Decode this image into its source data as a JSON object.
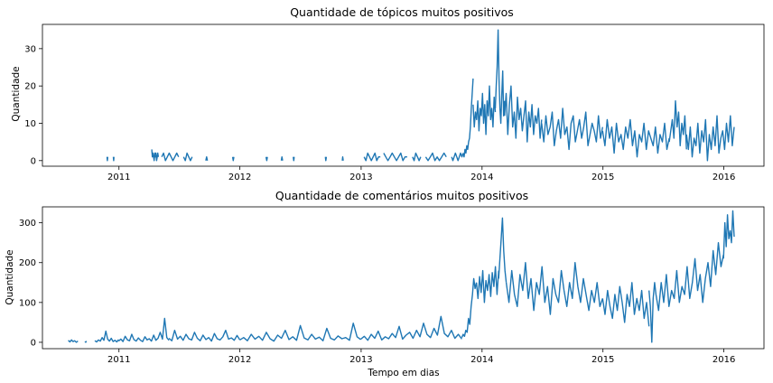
{
  "chart_data": [
    {
      "type": "line",
      "title": "Quantidade de tópicos muitos positivos",
      "xlabel": "",
      "ylabel": "Quantidade",
      "xlim": [
        "2010-05-15",
        "2016-05-01"
      ],
      "ylim": [
        -1.5,
        36.5
      ],
      "xticks": [
        {
          "label": "2011",
          "date": "2011-01-01"
        },
        {
          "label": "2012",
          "date": "2012-01-01"
        },
        {
          "label": "2013",
          "date": "2013-01-01"
        },
        {
          "label": "2014",
          "date": "2014-01-01"
        },
        {
          "label": "2015",
          "date": "2015-01-01"
        },
        {
          "label": "2016",
          "date": "2016-01-01"
        }
      ],
      "yticks": [
        0,
        10,
        20,
        30
      ],
      "grid": false,
      "color": "#1f77b4",
      "series_segments": [
        {
          "start": "2010-11-26",
          "end": "2010-11-28",
          "values": [
            1,
            0,
            1
          ]
        },
        {
          "start": "2010-12-15",
          "end": "2010-12-17",
          "values": [
            1,
            0,
            1
          ]
        },
        {
          "start": "2011-04-10",
          "end": "2011-04-30",
          "values": [
            3,
            1,
            2,
            1,
            0,
            2,
            1,
            2,
            0,
            1,
            2,
            1
          ]
        },
        {
          "start": "2011-05-10",
          "end": "2011-06-30",
          "values": [
            1,
            2,
            0,
            1,
            2,
            1,
            0,
            1,
            2,
            1
          ]
        },
        {
          "start": "2011-07-15",
          "end": "2011-08-10",
          "values": [
            1,
            0,
            2,
            1,
            0,
            1
          ]
        },
        {
          "start": "2011-09-20",
          "end": "2011-09-25",
          "values": [
            0,
            1,
            0
          ]
        },
        {
          "start": "2011-12-10",
          "end": "2011-12-14",
          "values": [
            1,
            0,
            1
          ]
        },
        {
          "start": "2012-03-20",
          "end": "2012-03-24",
          "values": [
            1,
            0,
            1
          ]
        },
        {
          "start": "2012-05-05",
          "end": "2012-05-09",
          "values": [
            0,
            1,
            0
          ]
        },
        {
          "start": "2012-06-10",
          "end": "2012-06-13",
          "values": [
            1,
            0,
            1
          ]
        },
        {
          "start": "2012-09-15",
          "end": "2012-09-18",
          "values": [
            1,
            0,
            1
          ]
        },
        {
          "start": "2012-11-05",
          "end": "2012-11-08",
          "values": [
            0,
            1,
            0
          ]
        },
        {
          "start": "2013-01-10",
          "end": "2013-02-28",
          "values": [
            1,
            0,
            2,
            1,
            0,
            1,
            2,
            0,
            1,
            1
          ]
        },
        {
          "start": "2013-03-10",
          "end": "2013-05-20",
          "values": [
            2,
            1,
            0,
            1,
            2,
            1,
            0,
            1,
            2,
            0,
            1,
            1
          ]
        },
        {
          "start": "2013-06-05",
          "end": "2013-06-30",
          "values": [
            1,
            0,
            2,
            1,
            0,
            1
          ]
        },
        {
          "start": "2013-07-15",
          "end": "2013-09-15",
          "values": [
            1,
            0,
            1,
            2,
            0,
            1,
            0,
            1,
            2,
            1
          ]
        },
        {
          "start": "2013-10-01",
          "end": "2013-11-05",
          "values": [
            1,
            0,
            1,
            2,
            1,
            0,
            1,
            2,
            1,
            2
          ]
        },
        {
          "start": "2013-11-05",
          "end": "2013-12-05",
          "values": [
            2,
            1,
            3,
            2,
            4,
            3,
            5,
            6,
            9,
            14,
            18,
            22
          ]
        },
        {
          "start": "2013-12-05",
          "end": "2014-02-10",
          "values": [
            15,
            9,
            13,
            11,
            16,
            8,
            14,
            12,
            18,
            10,
            15,
            7,
            16,
            12,
            20,
            11,
            14,
            9,
            17,
            13
          ]
        },
        {
          "start": "2014-02-10",
          "end": "2014-03-10",
          "values": [
            14,
            20,
            25,
            35,
            22,
            14,
            10,
            18,
            24,
            12,
            16
          ]
        },
        {
          "start": "2014-03-10",
          "end": "2014-06-30",
          "values": [
            12,
            18,
            7,
            15,
            20,
            9,
            13,
            6,
            17,
            11,
            14,
            8,
            12,
            16,
            5,
            13,
            9,
            15,
            7,
            12,
            10,
            14,
            6,
            11
          ]
        },
        {
          "start": "2014-06-30",
          "end": "2014-12-31",
          "values": [
            10,
            5,
            12,
            7,
            9,
            13,
            4,
            8,
            11,
            6,
            14,
            7,
            9,
            3,
            10,
            12,
            5,
            8,
            11,
            6,
            9,
            13,
            4,
            7,
            10,
            8,
            5,
            12,
            6,
            9
          ]
        },
        {
          "start": "2014-12-31",
          "end": "2015-07-20",
          "values": [
            8,
            4,
            11,
            6,
            9,
            2,
            10,
            5,
            7,
            3,
            9,
            6,
            11,
            4,
            8,
            1,
            7,
            5,
            10,
            3,
            8,
            6,
            4,
            9,
            2,
            7,
            5,
            10,
            3,
            6
          ]
        },
        {
          "start": "2015-07-20",
          "end": "2015-09-10",
          "values": [
            5,
            8,
            11,
            6,
            16,
            9,
            13,
            4,
            10,
            7,
            12,
            3
          ]
        },
        {
          "start": "2015-09-10",
          "end": "2016-02-01",
          "values": [
            7,
            3,
            9,
            1,
            6,
            4,
            10,
            2,
            8,
            5,
            11,
            0,
            7,
            3,
            9,
            4,
            12,
            2,
            6,
            8,
            3,
            10,
            5,
            12,
            4,
            9
          ]
        }
      ]
    },
    {
      "type": "line",
      "title": "Quantidade de comentários muitos positivos",
      "xlabel": "Tempo em dias",
      "ylabel": "Quantidade",
      "xlim": [
        "2010-05-15",
        "2016-05-01"
      ],
      "ylim": [
        -16,
        340
      ],
      "xticks": [
        {
          "label": "2011",
          "date": "2011-01-01"
        },
        {
          "label": "2012",
          "date": "2012-01-01"
        },
        {
          "label": "2013",
          "date": "2013-01-01"
        },
        {
          "label": "2014",
          "date": "2014-01-01"
        },
        {
          "label": "2015",
          "date": "2015-01-01"
        },
        {
          "label": "2016",
          "date": "2016-01-01"
        }
      ],
      "yticks": [
        0,
        100,
        200,
        300
      ],
      "grid": false,
      "color": "#1f77b4",
      "series_segments": [
        {
          "start": "2010-08-01",
          "end": "2010-08-30",
          "values": [
            5,
            1,
            6,
            2,
            4,
            0,
            3
          ]
        },
        {
          "start": "2010-09-20",
          "end": "2010-09-25",
          "values": [
            2,
            0,
            3
          ]
        },
        {
          "start": "2010-10-20",
          "end": "2010-12-31",
          "values": [
            4,
            1,
            6,
            3,
            12,
            5,
            28,
            8,
            3,
            10,
            2,
            5,
            1,
            7
          ]
        },
        {
          "start": "2010-12-31",
          "end": "2011-06-01",
          "values": [
            3,
            8,
            2,
            15,
            6,
            4,
            20,
            7,
            3,
            11,
            5,
            2,
            14,
            6,
            9,
            3,
            18,
            5,
            10,
            25,
            8,
            60,
            12,
            5
          ]
        },
        {
          "start": "2011-06-01",
          "end": "2012-01-01",
          "values": [
            10,
            4,
            30,
            8,
            15,
            5,
            20,
            9,
            6,
            25,
            10,
            4,
            18,
            7,
            12,
            3,
            22,
            9,
            6,
            14,
            30,
            8,
            11,
            5,
            17,
            6
          ]
        },
        {
          "start": "2012-01-01",
          "end": "2012-12-31",
          "values": [
            6,
            12,
            4,
            20,
            8,
            15,
            5,
            25,
            9,
            3,
            18,
            10,
            30,
            7,
            14,
            5,
            42,
            11,
            6,
            20,
            8,
            13,
            4,
            35,
            10,
            6,
            16,
            9,
            12,
            5,
            48,
            14,
            7
          ]
        },
        {
          "start": "2012-12-31",
          "end": "2013-11-01",
          "values": [
            8,
            15,
            5,
            20,
            10,
            28,
            6,
            14,
            9,
            22,
            12,
            40,
            8,
            18,
            25,
            10,
            30,
            14,
            48,
            20,
            12,
            35,
            18,
            65,
            22,
            14,
            30,
            10,
            20,
            8
          ]
        },
        {
          "start": "2013-11-01",
          "end": "2013-12-15",
          "values": [
            12,
            20,
            15,
            30,
            25,
            60,
            45,
            90,
            120,
            160,
            135,
            150
          ]
        },
        {
          "start": "2013-12-15",
          "end": "2014-02-20",
          "values": [
            150,
            110,
            165,
            125,
            180,
            100,
            155,
            130,
            170,
            115,
            175,
            140,
            190,
            120,
            180
          ]
        },
        {
          "start": "2014-02-20",
          "end": "2014-03-15",
          "values": [
            160,
            210,
            260,
            312,
            230,
            180,
            150
          ]
        },
        {
          "start": "2014-03-15",
          "end": "2014-12-31",
          "values": [
            150,
            100,
            180,
            120,
            90,
            170,
            130,
            200,
            110,
            160,
            80,
            150,
            120,
            190,
            100,
            140,
            70,
            160,
            120,
            100,
            180,
            130,
            90,
            150,
            110,
            200,
            140,
            100,
            160,
            120,
            80,
            130,
            100,
            150,
            90,
            110
          ]
        },
        {
          "start": "2014-12-31",
          "end": "2015-05-20",
          "values": [
            110,
            70,
            130,
            90,
            60,
            120,
            80,
            140,
            100,
            50,
            120,
            90,
            150,
            70,
            110,
            80,
            130,
            60,
            100,
            40
          ]
        },
        {
          "start": "2015-05-20",
          "end": "2015-06-10",
          "values": [
            130,
            90,
            0,
            110,
            150,
            120
          ]
        },
        {
          "start": "2015-06-10",
          "end": "2015-12-31",
          "values": [
            120,
            80,
            150,
            100,
            170,
            90,
            130,
            110,
            180,
            100,
            140,
            120,
            190,
            110,
            150,
            210,
            130,
            170,
            100,
            160,
            200,
            140,
            230,
            170,
            250,
            190,
            220
          ]
        },
        {
          "start": "2015-12-31",
          "end": "2016-02-01",
          "values": [
            210,
            300,
            240,
            320,
            260,
            280,
            250,
            330,
            265
          ]
        }
      ]
    }
  ]
}
